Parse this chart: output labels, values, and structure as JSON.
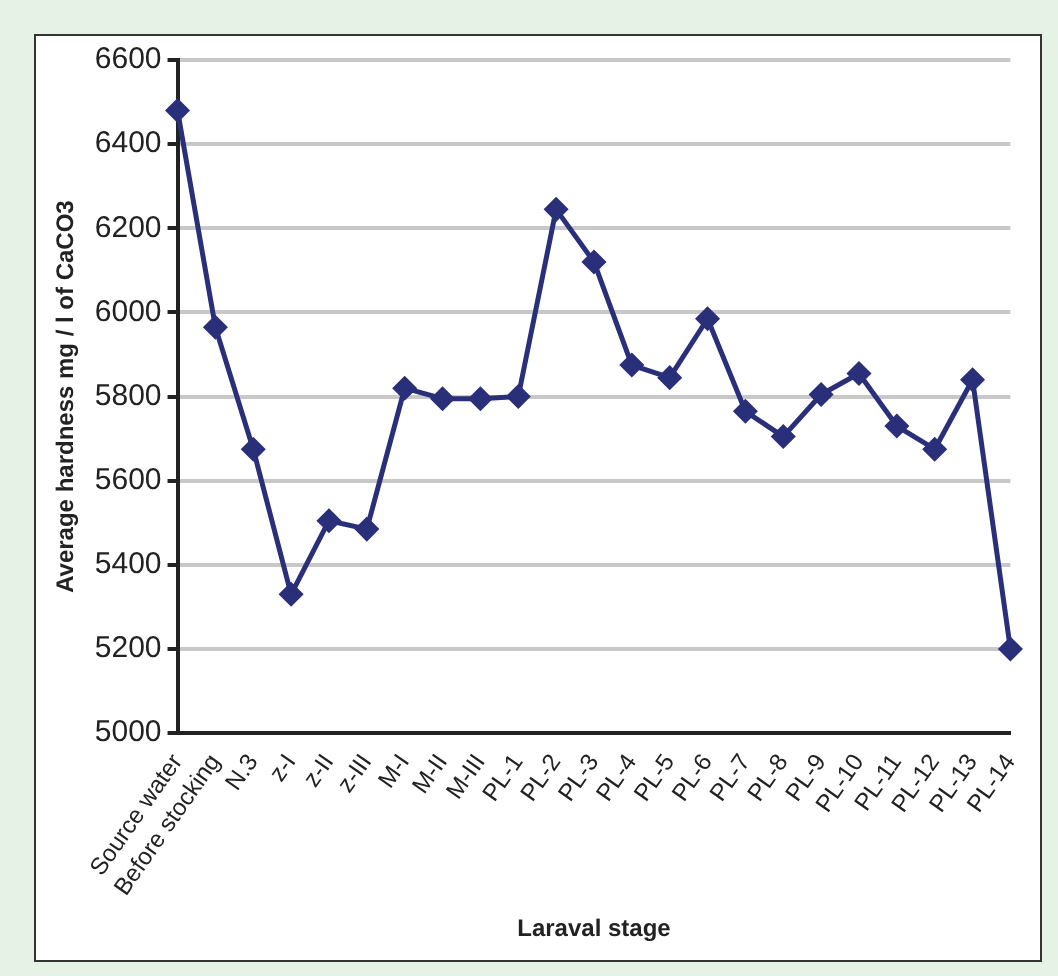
{
  "chart_data": {
    "type": "line",
    "xlabel": "Laraval stage",
    "ylabel": "Average hardness mg / l of CaCO3",
    "categories": [
      "Source water",
      "Before stocking",
      "N.3",
      "z-I",
      "z-II",
      "z-III",
      "M-I",
      "M-II",
      "M-III",
      "PL-1",
      "PL-2",
      "PL-3",
      "PL-4",
      "PL-5",
      "PL-6",
      "PL-7",
      "PL-8",
      "PL-9",
      "PL-10",
      "PL-11",
      "PL-12",
      "PL-13",
      "PL-14"
    ],
    "series": [
      {
        "color": "#2a2f7a",
        "values": [
          6480,
          5965,
          5675,
          5330,
          5505,
          5485,
          5820,
          5795,
          5795,
          5800,
          6245,
          6120,
          5875,
          5845,
          5985,
          5765,
          5705,
          5805,
          5855,
          5730,
          5675,
          5840,
          5200
        ]
      }
    ],
    "ylim": [
      5000,
      6600
    ],
    "yticks": [
      5000,
      5200,
      5400,
      5600,
      5800,
      6000,
      6200,
      6400,
      6600
    ],
    "grid": "y",
    "legend": false,
    "marker": "diamond",
    "line_style": "solid"
  }
}
